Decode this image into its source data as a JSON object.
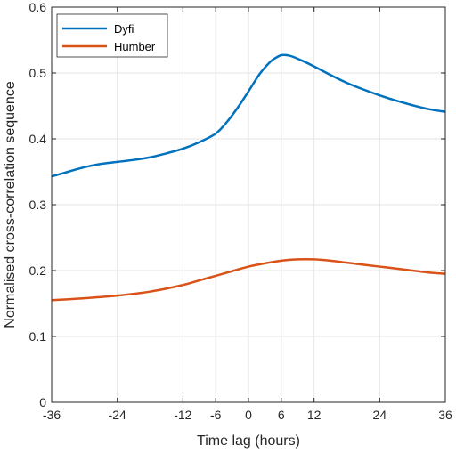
{
  "chart_data": {
    "type": "line",
    "xlabel": "Time lag (hours)",
    "ylabel": "Normalised cross-correlation sequence",
    "xlim": [
      -36,
      36
    ],
    "ylim": [
      0,
      0.6
    ],
    "x_ticks": [
      -36,
      -24,
      -12,
      -6,
      0,
      6,
      12,
      24,
      36
    ],
    "y_ticks": [
      0,
      0.1,
      0.2,
      0.3,
      0.4,
      0.5,
      0.6
    ],
    "x_tick_labels": [
      "-36",
      "-24",
      "-12",
      "-6",
      "0",
      "6",
      "12",
      "24",
      "36"
    ],
    "y_tick_labels": [
      "0",
      "0.1",
      "0.2",
      "0.3",
      "0.4",
      "0.5",
      "0.6"
    ],
    "grid": true,
    "legend_position": "top-left",
    "series": [
      {
        "name": "Dyfi",
        "color": "#0072BD",
        "x": [
          -36,
          -33,
          -30,
          -27,
          -24,
          -21,
          -18,
          -15,
          -12,
          -9,
          -6,
          -4,
          -2,
          0,
          2,
          4,
          5,
          6,
          7,
          8,
          10,
          12,
          15,
          18,
          21,
          24,
          27,
          30,
          33,
          36
        ],
        "y": [
          0.343,
          0.35,
          0.357,
          0.362,
          0.365,
          0.368,
          0.372,
          0.378,
          0.385,
          0.395,
          0.408,
          0.425,
          0.447,
          0.472,
          0.498,
          0.517,
          0.523,
          0.527,
          0.527,
          0.525,
          0.518,
          0.51,
          0.497,
          0.485,
          0.475,
          0.466,
          0.458,
          0.451,
          0.445,
          0.441
        ]
      },
      {
        "name": "Humber",
        "color": "#D95319",
        "x": [
          -36,
          -30,
          -24,
          -18,
          -12,
          -9,
          -6,
          -3,
          0,
          3,
          6,
          9,
          12,
          15,
          18,
          21,
          24,
          27,
          30,
          33,
          36
        ],
        "y": [
          0.155,
          0.158,
          0.162,
          0.168,
          0.178,
          0.185,
          0.192,
          0.199,
          0.206,
          0.211,
          0.215,
          0.217,
          0.217,
          0.215,
          0.212,
          0.209,
          0.206,
          0.203,
          0.2,
          0.197,
          0.195
        ]
      }
    ]
  }
}
